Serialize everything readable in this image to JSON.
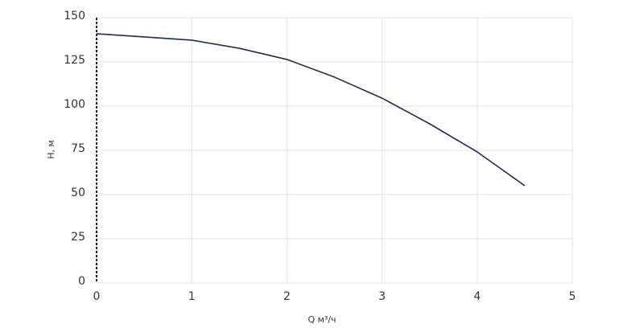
{
  "chart_data": {
    "type": "line",
    "x_label": "Q м³/ч",
    "y_label": "H, м",
    "x": [
      0,
      0.5,
      1,
      1.5,
      2,
      2.5,
      3,
      3.5,
      4,
      4.5
    ],
    "series": [
      {
        "color": "#1f2a5c",
        "values": [
          140.9,
          139.1,
          137.3,
          132.7,
          126.4,
          116.4,
          104.5,
          90,
          74.1,
          55
        ]
      }
    ],
    "xlim": [
      0,
      5
    ],
    "xticks": [
      0,
      1,
      2,
      3,
      4,
      5
    ],
    "ylim": [
      0,
      150
    ],
    "yticks": [
      0,
      25,
      50,
      75,
      100,
      125,
      150
    ],
    "grid": true
  }
}
